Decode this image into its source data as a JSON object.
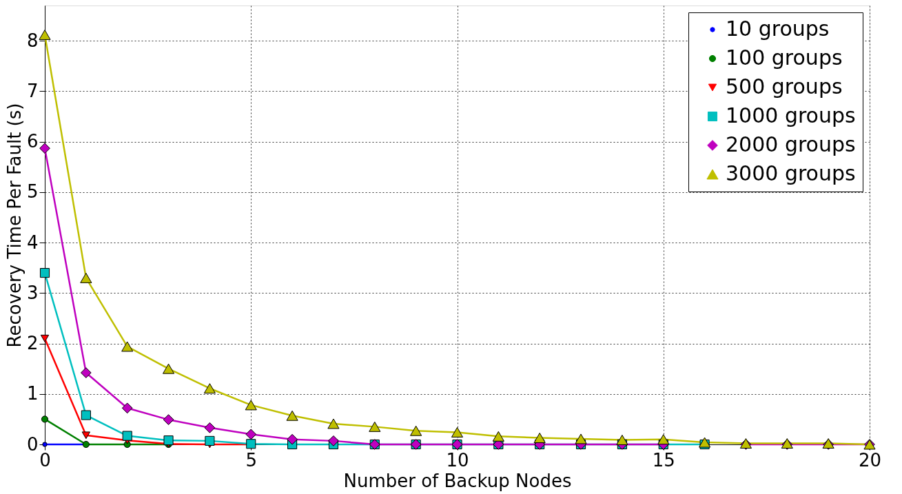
{
  "chart_data": {
    "type": "line",
    "xlabel": "Number of Backup Nodes",
    "ylabel": "Recovery Time Per Fault (s)",
    "x": [
      0,
      1,
      2,
      3,
      4,
      5,
      6,
      7,
      8,
      9,
      10,
      11,
      12,
      13,
      14,
      15,
      16,
      17,
      18,
      19,
      20
    ],
    "xlim": [
      0,
      20
    ],
    "xticks": [
      0,
      5,
      10,
      15,
      20
    ],
    "ylim": [
      0,
      8.7
    ],
    "yticks": [
      0,
      1,
      2,
      3,
      4,
      5,
      6,
      7,
      8
    ],
    "grid": true,
    "legend": "top right",
    "line_style": "solid",
    "series": [
      {
        "name": "10 groups",
        "color": "#0000ff",
        "marker": "point",
        "values": [
          0,
          0,
          null,
          null,
          null,
          null,
          null,
          null,
          null,
          null,
          null,
          null,
          null,
          null,
          null,
          null,
          null,
          null,
          null,
          null,
          null
        ]
      },
      {
        "name": "100 groups",
        "color": "#008000",
        "marker": "circle",
        "values": [
          0.5,
          0,
          0,
          0,
          null,
          null,
          null,
          null,
          null,
          null,
          null,
          null,
          null,
          null,
          null,
          null,
          null,
          null,
          null,
          null,
          null
        ]
      },
      {
        "name": "500 groups",
        "color": "#ff0000",
        "marker": "triangle-down",
        "values": [
          2.1,
          0.18,
          0.08,
          0.01,
          0,
          0,
          null,
          null,
          null,
          null,
          null,
          null,
          null,
          null,
          null,
          null,
          null,
          null,
          null,
          null,
          null
        ]
      },
      {
        "name": "1000 groups",
        "color": "#00bfbf",
        "marker": "square",
        "values": [
          3.4,
          0.58,
          0.17,
          0.08,
          0.07,
          0.01,
          0,
          0,
          0,
          0,
          0,
          0,
          0,
          0,
          0,
          0,
          0,
          null,
          null,
          null,
          null
        ]
      },
      {
        "name": "2000 groups",
        "color": "#bf00bf",
        "marker": "diamond",
        "values": [
          5.87,
          1.42,
          0.72,
          0.49,
          0.33,
          0.2,
          0.1,
          0.07,
          0,
          0,
          0,
          0,
          0,
          0,
          0,
          0,
          null,
          0,
          0,
          0,
          0
        ]
      },
      {
        "name": "3000 groups",
        "color": "#bfbf00",
        "marker": "triangle-up",
        "values": [
          8.12,
          3.3,
          1.94,
          1.5,
          1.11,
          0.78,
          0.57,
          0.41,
          0.35,
          0.27,
          0.24,
          0.16,
          0.13,
          0.11,
          0.09,
          0.1,
          0.04,
          0.02,
          0.02,
          0.02,
          0
        ]
      }
    ]
  }
}
